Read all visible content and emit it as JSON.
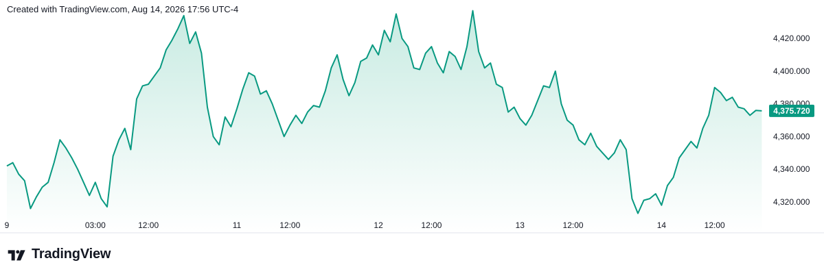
{
  "header": {
    "created_text": "Created with TradingView.com, Aug 14, 2026 17:56 UTC-4"
  },
  "brand": {
    "name": "TradingView",
    "logo_icon": "tradingview-logo-icon"
  },
  "colors": {
    "line": "#089981",
    "fill_top": "#c8ebe2",
    "fill_bottom": "#ffffff",
    "axis_text": "#131722",
    "border": "#e0e3eb"
  },
  "chart_data": {
    "type": "area",
    "title": "",
    "xlabel": "",
    "ylabel": "",
    "last_value": 4375.72,
    "last_value_label": "4,375.720",
    "ylim": [
      4312,
      4436
    ],
    "y_ticks": [
      {
        "value": 4320,
        "label": "4,320.000"
      },
      {
        "value": 4340,
        "label": "4,340.000"
      },
      {
        "value": 4360,
        "label": "4,360.000"
      },
      {
        "value": 4380,
        "label": "4,380.000"
      },
      {
        "value": 4400,
        "label": "4,400.000"
      },
      {
        "value": 4420,
        "label": "4,420.000"
      }
    ],
    "x_ticks": [
      {
        "t": 0,
        "label": "9"
      },
      {
        "t": 15,
        "label": "03:00"
      },
      {
        "t": 24,
        "label": "12:00"
      },
      {
        "t": 39,
        "label": "11"
      },
      {
        "t": 48,
        "label": "12:00"
      },
      {
        "t": 63,
        "label": "12"
      },
      {
        "t": 72,
        "label": "12:00"
      },
      {
        "t": 87,
        "label": "13"
      },
      {
        "t": 96,
        "label": "12:00"
      },
      {
        "t": 111,
        "label": "14"
      },
      {
        "t": 120,
        "label": "12:00"
      }
    ],
    "x_range": [
      0,
      129
    ],
    "x_unit": "hours since the \"9\" tick",
    "series": [
      {
        "points": [
          [
            0,
            4342
          ],
          [
            1,
            4344
          ],
          [
            2,
            4337
          ],
          [
            3,
            4333
          ],
          [
            4,
            4316
          ],
          [
            5,
            4323
          ],
          [
            6,
            4329
          ],
          [
            7,
            4332
          ],
          [
            8,
            4344
          ],
          [
            9,
            4358
          ],
          [
            10,
            4353
          ],
          [
            11,
            4347
          ],
          [
            12,
            4340
          ],
          [
            13,
            4332
          ],
          [
            14,
            4324
          ],
          [
            15,
            4332
          ],
          [
            16,
            4322
          ],
          [
            17,
            4317
          ],
          [
            18,
            4348
          ],
          [
            19,
            4358
          ],
          [
            20,
            4365
          ],
          [
            21,
            4352
          ],
          [
            22,
            4383
          ],
          [
            23,
            4391
          ],
          [
            24,
            4392
          ],
          [
            25,
            4397
          ],
          [
            26,
            4402
          ],
          [
            27,
            4413
          ],
          [
            28,
            4419
          ],
          [
            29,
            4426
          ],
          [
            30,
            4434
          ],
          [
            31,
            4417
          ],
          [
            32,
            4424
          ],
          [
            33,
            4411
          ],
          [
            34,
            4378
          ],
          [
            35,
            4360
          ],
          [
            36,
            4355
          ],
          [
            37,
            4372
          ],
          [
            38,
            4366
          ],
          [
            39,
            4377
          ],
          [
            40,
            4389
          ],
          [
            41,
            4399
          ],
          [
            42,
            4397
          ],
          [
            43,
            4386
          ],
          [
            44,
            4388
          ],
          [
            45,
            4380
          ],
          [
            46,
            4370
          ],
          [
            47,
            4360
          ],
          [
            48,
            4367
          ],
          [
            49,
            4373
          ],
          [
            50,
            4368
          ],
          [
            51,
            4375
          ],
          [
            52,
            4379
          ],
          [
            53,
            4378
          ],
          [
            54,
            4388
          ],
          [
            55,
            4402
          ],
          [
            56,
            4410
          ],
          [
            57,
            4395
          ],
          [
            58,
            4385
          ],
          [
            59,
            4393
          ],
          [
            60,
            4406
          ],
          [
            61,
            4408
          ],
          [
            62,
            4416
          ],
          [
            63,
            4410
          ],
          [
            64,
            4425
          ],
          [
            65,
            4418
          ],
          [
            66,
            4435
          ],
          [
            67,
            4420
          ],
          [
            68,
            4415
          ],
          [
            69,
            4402
          ],
          [
            70,
            4401
          ],
          [
            71,
            4411
          ],
          [
            72,
            4415
          ],
          [
            73,
            4405
          ],
          [
            74,
            4399
          ],
          [
            75,
            4412
          ],
          [
            76,
            4409
          ],
          [
            77,
            4401
          ],
          [
            78,
            4415
          ],
          [
            79,
            4437
          ],
          [
            80,
            4412
          ],
          [
            81,
            4402
          ],
          [
            82,
            4405
          ],
          [
            83,
            4392
          ],
          [
            84,
            4390
          ],
          [
            85,
            4375
          ],
          [
            86,
            4378
          ],
          [
            87,
            4371
          ],
          [
            88,
            4367
          ],
          [
            89,
            4373
          ],
          [
            90,
            4382
          ],
          [
            91,
            4391
          ],
          [
            92,
            4390
          ],
          [
            93,
            4400
          ],
          [
            94,
            4380
          ],
          [
            95,
            4370
          ],
          [
            96,
            4367
          ],
          [
            97,
            4358
          ],
          [
            98,
            4355
          ],
          [
            99,
            4362
          ],
          [
            100,
            4354
          ],
          [
            101,
            4350
          ],
          [
            102,
            4346
          ],
          [
            103,
            4350
          ],
          [
            104,
            4358
          ],
          [
            105,
            4352
          ],
          [
            106,
            4322
          ],
          [
            107,
            4313
          ],
          [
            108,
            4321
          ],
          [
            109,
            4322
          ],
          [
            110,
            4325
          ],
          [
            111,
            4318
          ],
          [
            112,
            4330
          ],
          [
            113,
            4335
          ],
          [
            114,
            4347
          ],
          [
            115,
            4352
          ],
          [
            116,
            4357
          ],
          [
            117,
            4353
          ],
          [
            118,
            4365
          ],
          [
            119,
            4373
          ],
          [
            120,
            4390
          ],
          [
            121,
            4387
          ],
          [
            122,
            4382
          ],
          [
            123,
            4384
          ],
          [
            124,
            4378
          ],
          [
            125,
            4377
          ],
          [
            126,
            4373
          ],
          [
            127,
            4376
          ],
          [
            128,
            4375.72
          ]
        ]
      }
    ]
  }
}
